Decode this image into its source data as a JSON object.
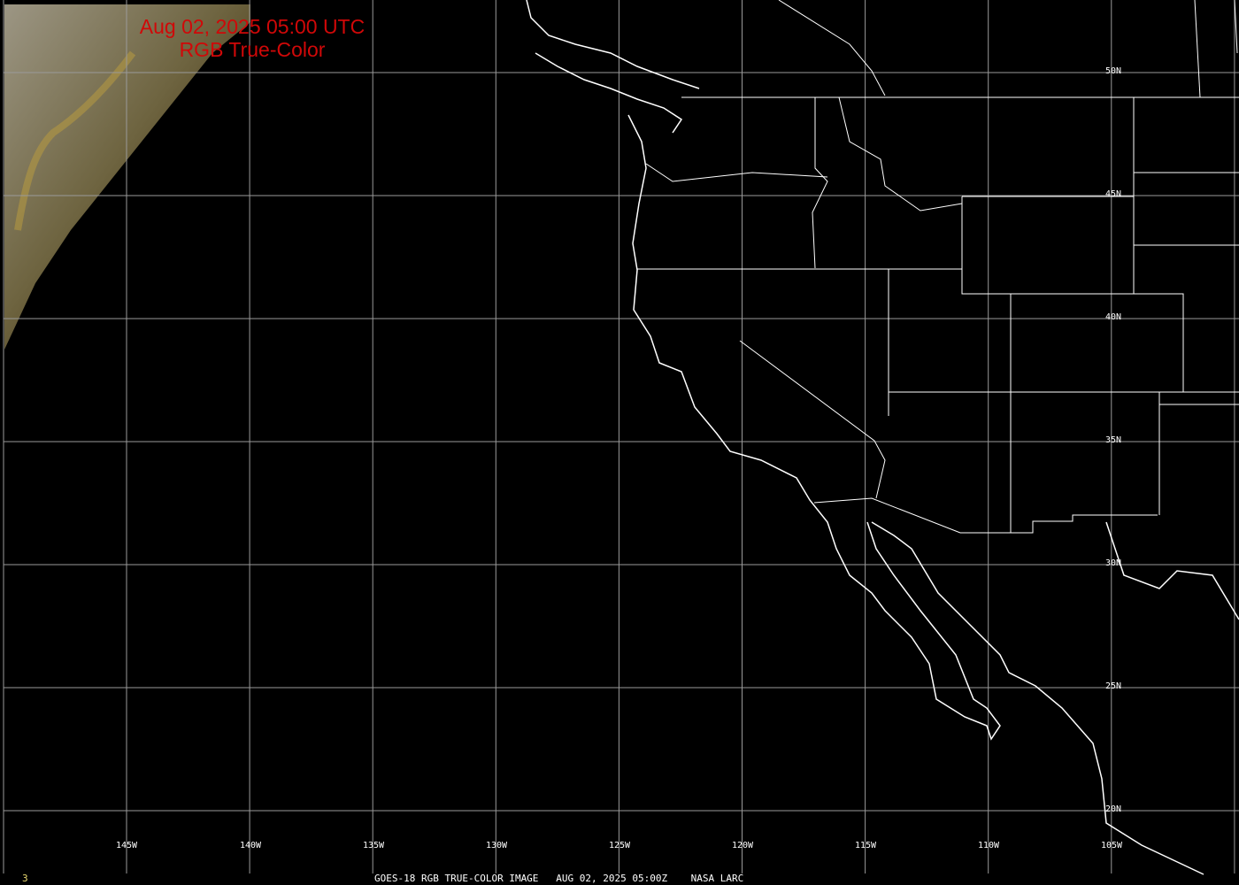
{
  "title": {
    "line1": "Aug 02, 2025 05:00 UTC",
    "line2": "RGB True-Color",
    "color": "#d00808"
  },
  "footer": {
    "frame": "3",
    "caption": "GOES-18 RGB TRUE-COLOR IMAGE   AUG 02, 2025 05:00Z    NASA LARC"
  },
  "lat_labels": [
    "50N",
    "45N",
    "40N",
    "35N",
    "30N",
    "25N",
    "20N"
  ],
  "lon_labels": [
    "145W",
    "140W",
    "135W",
    "130W",
    "125W",
    "120W",
    "115W",
    "110W",
    "105W"
  ],
  "colors": {
    "background": "#000000",
    "grid": "#9a9a9a",
    "boundaries": "#ffffff",
    "frame_number": "#e8d870"
  }
}
